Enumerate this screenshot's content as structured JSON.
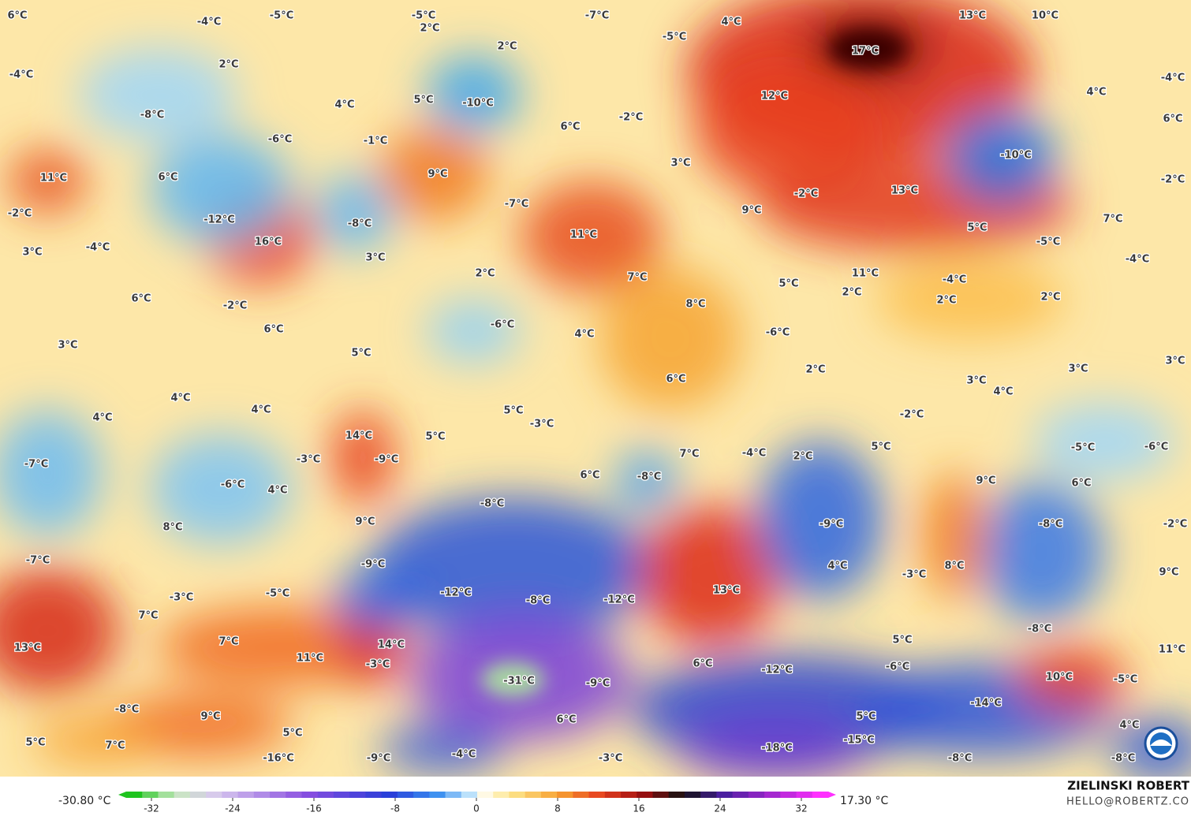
{
  "map": {
    "labels": [
      "6°C",
      "-4°C",
      "-5°C",
      "-5°C",
      "2°C",
      "-7°C",
      "-5°C",
      "4°C",
      "13°C",
      "10°C",
      "17°C",
      "-4°C",
      "2°C",
      "2°C",
      "-4°C",
      "4°C",
      "5°C",
      "-10°C",
      "12°C",
      "4°C",
      "-8°C",
      "-2°C",
      "6°C",
      "6°C",
      "-6°C",
      "-1°C",
      "-10°C",
      "11°C",
      "6°C",
      "9°C",
      "3°C",
      "-2°C",
      "13°C",
      "-2°C",
      "-7°C",
      "9°C",
      "-2°C",
      "-12°C",
      "-8°C",
      "7°C",
      "5°C",
      "11°C",
      "16°C",
      "-5°C",
      "3°C",
      "-4°C",
      "3°C",
      "-4°C",
      "2°C",
      "7°C",
      "11°C",
      "5°C",
      "-4°C",
      "2°C",
      "2°C",
      "2°C",
      "6°C",
      "-2°C",
      "8°C",
      "6°C",
      "-6°C",
      "-6°C",
      "4°C",
      "3°C",
      "5°C",
      "3°C",
      "2°C",
      "3°C",
      "6°C",
      "3°C",
      "4°C",
      "4°C",
      "4°C",
      "4°C",
      "5°C",
      "-2°C",
      "-3°C",
      "14°C",
      "5°C",
      "-9°C",
      "5°C",
      "-5°C",
      "-6°C",
      "7°C",
      "-4°C",
      "2°C",
      "-3°C",
      "-7°C",
      "6°C",
      "-8°C",
      "9°C",
      "6°C",
      "-6°C",
      "4°C",
      "-8°C",
      "-9°C",
      "-8°C",
      "8°C",
      "9°C",
      "-2°C",
      "-7°C",
      "-9°C",
      "4°C",
      "-3°C",
      "8°C",
      "9°C",
      "13°C",
      "-12°C",
      "-5°C",
      "-3°C",
      "-8°C",
      "-12°C",
      "7°C",
      "-8°C",
      "5°C",
      "13°C",
      "7°C",
      "11°C",
      "14°C",
      "11°C",
      "6°C",
      "-3°C",
      "-12°C",
      "-6°C",
      "-31°C",
      "-9°C",
      "10°C",
      "-5°C",
      "-14°C",
      "-8°C",
      "9°C",
      "6°C",
      "5°C",
      "4°C",
      "5°C",
      "7°C",
      "5°C",
      "-15°C",
      "-18°C",
      "-4°C",
      "-16°C",
      "-9°C",
      "-3°C",
      "-8°C",
      "-8°C"
    ],
    "colorbar": {
      "ticks": [
        -32,
        -24,
        -16,
        -8,
        0,
        8,
        16,
        24,
        32
      ],
      "min_label": "-30.80 °C",
      "max_label": "17.30 °C"
    },
    "credit": {
      "name": "ZIELINSKI ROBERT",
      "email": "HELLO@ROBERTZ.CO"
    }
  }
}
